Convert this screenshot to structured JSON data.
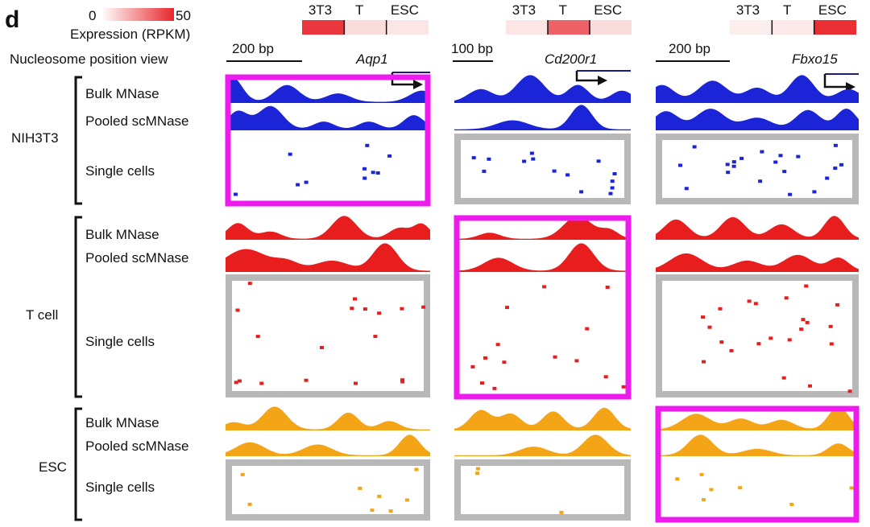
{
  "panel_letter": "d",
  "legend": {
    "min": "0",
    "max": "50",
    "title": "Expression (RPKM)",
    "color": "#e8262c"
  },
  "nucleosome_view_label": "Nucleosome position view",
  "row_labels": {
    "bulk": "Bulk MNase",
    "pooled": "Pooled scMNase",
    "single": "Single cells"
  },
  "colors": {
    "NIH3T3": "#1b24d6",
    "T cell": "#e81d1d",
    "ESC": "#f3a517",
    "highlight": "#ee1bee",
    "frame": "#b8b8b8"
  },
  "expression_labels": [
    "3T3",
    "T",
    "ESC"
  ],
  "genes": [
    {
      "name": "Aqp1",
      "scale": "200 bp",
      "expression": [
        46,
        8,
        6
      ]
    },
    {
      "name": "Cd200r1",
      "scale": "100 bp",
      "expression": [
        6,
        36,
        8
      ]
    },
    {
      "name": "Fbxo15",
      "scale": "200 bp",
      "expression": [
        4,
        5,
        48
      ]
    }
  ],
  "cell_types": [
    "NIH3T3",
    "T cell",
    "ESC"
  ],
  "highlighted_panels": [
    {
      "cell_type": "NIH3T3",
      "gene": "Aqp1"
    },
    {
      "cell_type": "T cell",
      "gene": "Cd200r1"
    },
    {
      "cell_type": "ESC",
      "gene": "Fbxo15"
    }
  ]
}
